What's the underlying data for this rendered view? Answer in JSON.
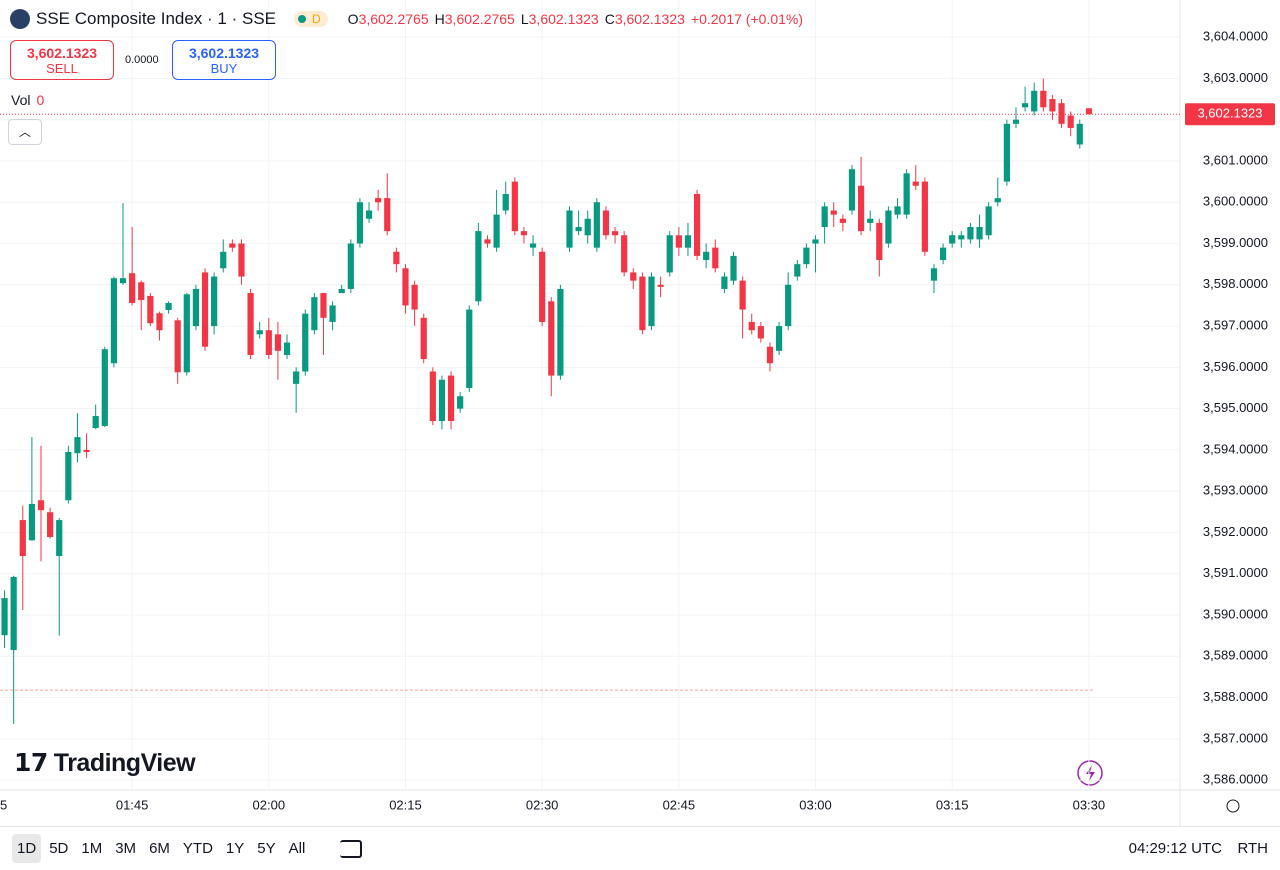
{
  "header": {
    "title": "SSE Composite Index · 1 · SSE",
    "badge": "D",
    "ohlc": [
      {
        "label": "O",
        "value": "3,602.2765"
      },
      {
        "label": "H",
        "value": "3,602.2765"
      },
      {
        "label": "L",
        "value": "3,602.1323"
      },
      {
        "label": "C",
        "value": "3,602.1323"
      }
    ],
    "change": "+0.2017 (+0.01%)"
  },
  "trade": {
    "sell_price": "3,602.1323",
    "sell_label": "SELL",
    "spread": "0.0000",
    "buy_price": "3,602.1323",
    "buy_label": "BUY"
  },
  "volume": {
    "label": "Vol",
    "value": "0"
  },
  "logo": "TradingView",
  "toolbar": {
    "ranges": [
      "1D",
      "5D",
      "1M",
      "3M",
      "6M",
      "YTD",
      "1Y",
      "5Y",
      "All"
    ],
    "time": "04:29:12 UTC",
    "session": "RTH"
  },
  "chart_data": {
    "type": "candlestick",
    "up_color": "#089981",
    "down_color": "#f23645",
    "open": [
      3589.51,
      3589.15,
      3592.3,
      3591.81,
      3592.78,
      3592.49,
      3591.43,
      3592.78,
      3593.92,
      3594.0,
      3594.53,
      3594.58,
      3596.1,
      3598.04,
      3598.28,
      3598.06,
      3597.73,
      3597.31,
      3597.39,
      3597.14,
      3595.88,
      3597.0,
      3598.3,
      3597.0,
      3598.4,
      3599.0,
      3599.0,
      3597.8,
      3596.8,
      3596.9,
      3596.8,
      3596.3,
      3595.6,
      3595.9,
      3596.9,
      3597.8,
      3597.1,
      3597.8,
      3597.9,
      3599.0,
      3599.6,
      3600.1,
      3600.1,
      3598.8,
      3598.4,
      3598.0,
      3597.2,
      3595.9,
      3594.7,
      3595.8,
      3595.0,
      3595.5,
      3597.6,
      3599.1,
      3598.9,
      3599.8,
      3600.5,
      3599.3,
      3598.9,
      3598.8,
      3597.6,
      3595.8,
      3598.9,
      3599.3,
      3599.2,
      3598.9,
      3599.8,
      3599.3,
      3599.2,
      3598.3,
      3598.2,
      3597.0,
      3598.0,
      3598.3,
      3599.2,
      3598.9,
      3600.2,
      3598.6,
      3598.9,
      3597.9,
      3598.1,
      3598.1,
      3597.1,
      3597.0,
      3596.5,
      3596.4,
      3597.0,
      3598.2,
      3598.5,
      3599.0,
      3599.4,
      3599.8,
      3599.6,
      3599.8,
      3600.4,
      3599.5,
      3599.5,
      3599.0,
      3599.7,
      3599.7,
      3600.5,
      3600.5,
      3598.1,
      3598.6,
      3599.0,
      3599.1,
      3599.1,
      3599.1,
      3599.2,
      3600.0,
      3600.5,
      3601.9,
      3602.3,
      3602.2,
      3602.7,
      3602.5,
      3602.4,
      3602.1,
      3601.4,
      3602.2765
    ],
    "close": [
      3590.41,
      3590.92,
      3591.43,
      3592.69,
      3592.54,
      3591.89,
      3592.3,
      3593.95,
      3594.31,
      3593.95,
      3594.82,
      3596.44,
      3598.16,
      3598.16,
      3597.56,
      3597.63,
      3597.07,
      3596.9,
      3597.56,
      3595.88,
      3597.77,
      3597.9,
      3596.5,
      3598.2,
      3598.8,
      3598.9,
      3598.2,
      3596.3,
      3596.9,
      3596.3,
      3596.4,
      3596.6,
      3595.9,
      3597.3,
      3597.7,
      3597.2,
      3597.5,
      3597.9,
      3599.0,
      3600.0,
      3599.8,
      3600.0,
      3599.3,
      3598.5,
      3597.5,
      3597.4,
      3596.2,
      3594.7,
      3595.7,
      3594.7,
      3595.3,
      3597.4,
      3599.3,
      3599.0,
      3599.7,
      3600.2,
      3599.3,
      3599.2,
      3599.0,
      3597.1,
      3595.8,
      3597.9,
      3599.8,
      3599.4,
      3599.6,
      3600.0,
      3599.2,
      3599.2,
      3598.3,
      3598.1,
      3596.9,
      3598.2,
      3597.95,
      3599.2,
      3598.9,
      3599.2,
      3598.7,
      3598.8,
      3598.4,
      3598.2,
      3598.7,
      3597.4,
      3596.9,
      3596.7,
      3596.1,
      3597.0,
      3598.0,
      3598.5,
      3598.9,
      3599.1,
      3599.9,
      3599.7,
      3599.5,
      3600.8,
      3599.3,
      3599.6,
      3598.6,
      3599.8,
      3599.9,
      3600.7,
      3600.4,
      3598.8,
      3598.4,
      3598.9,
      3599.2,
      3599.2,
      3599.4,
      3599.4,
      3599.9,
      3600.1,
      3601.9,
      3602.0,
      3602.4,
      3602.7,
      3602.3,
      3602.2,
      3601.9,
      3601.8,
      3601.9,
      3602.1323
    ],
    "high": [
      3590.6,
      3590.95,
      3592.65,
      3594.31,
      3594.1,
      3592.6,
      3592.35,
      3594.1,
      3594.89,
      3594.4,
      3595.1,
      3596.5,
      3598.2,
      3599.98,
      3599.4,
      3598.1,
      3597.8,
      3597.35,
      3597.6,
      3597.2,
      3597.8,
      3598.0,
      3598.4,
      3598.3,
      3599.1,
      3599.1,
      3599.1,
      3597.9,
      3597.1,
      3597.2,
      3597.1,
      3596.8,
      3596.0,
      3597.4,
      3597.8,
      3597.8,
      3597.6,
      3598.0,
      3599.1,
      3600.1,
      3600.0,
      3600.3,
      3600.7,
      3598.9,
      3598.5,
      3598.1,
      3597.3,
      3596.0,
      3595.8,
      3595.9,
      3595.4,
      3597.5,
      3599.5,
      3599.2,
      3600.3,
      3600.5,
      3600.6,
      3599.4,
      3599.2,
      3598.9,
      3597.7,
      3598.0,
      3599.9,
      3599.8,
      3599.8,
      3600.1,
      3599.9,
      3599.4,
      3599.3,
      3598.4,
      3598.3,
      3598.3,
      3598.2,
      3599.3,
      3599.4,
      3599.5,
      3600.3,
      3599.0,
      3599.1,
      3598.3,
      3598.8,
      3598.2,
      3597.3,
      3597.1,
      3596.6,
      3597.1,
      3598.3,
      3598.6,
      3599.0,
      3599.2,
      3600.0,
      3600.0,
      3599.7,
      3600.9,
      3601.1,
      3599.8,
      3599.6,
      3599.9,
      3600.1,
      3600.8,
      3600.9,
      3600.6,
      3598.5,
      3599.0,
      3599.3,
      3599.3,
      3599.5,
      3599.7,
      3600.0,
      3600.6,
      3602.0,
      3602.3,
      3602.8,
      3602.9,
      3603.0,
      3602.6,
      3602.5,
      3602.2,
      3602.0,
      3602.2765
    ],
    "low": [
      3589.2,
      3587.36,
      3590.12,
      3591.8,
      3591.3,
      3591.85,
      3589.5,
      3592.7,
      3593.7,
      3593.8,
      3594.5,
      3594.55,
      3596.0,
      3598.0,
      3597.5,
      3596.9,
      3597.0,
      3596.65,
      3597.3,
      3595.6,
      3595.8,
      3596.9,
      3596.4,
      3596.8,
      3598.3,
      3598.8,
      3598.0,
      3596.2,
      3596.7,
      3596.2,
      3595.7,
      3596.2,
      3594.9,
      3595.8,
      3596.8,
      3596.3,
      3596.9,
      3597.8,
      3597.8,
      3598.9,
      3599.5,
      3599.8,
      3599.2,
      3598.3,
      3597.3,
      3597.0,
      3596.1,
      3594.6,
      3594.5,
      3594.5,
      3594.9,
      3595.4,
      3597.5,
      3598.9,
      3598.8,
      3599.7,
      3599.2,
      3599.0,
      3598.7,
      3597.0,
      3595.3,
      3595.7,
      3598.8,
      3599.2,
      3599.0,
      3598.8,
      3599.1,
      3599.0,
      3598.2,
      3597.9,
      3596.8,
      3596.9,
      3597.7,
      3598.2,
      3598.7,
      3598.7,
      3598.6,
      3598.4,
      3598.3,
      3597.8,
      3598.0,
      3596.7,
      3596.8,
      3596.6,
      3595.9,
      3596.3,
      3596.9,
      3598.1,
      3598.4,
      3598.3,
      3599.0,
      3599.4,
      3599.3,
      3599.7,
      3599.2,
      3599.3,
      3598.2,
      3598.9,
      3599.6,
      3599.6,
      3600.3,
      3598.7,
      3597.8,
      3598.5,
      3598.9,
      3598.9,
      3599.0,
      3598.9,
      3599.1,
      3599.9,
      3600.4,
      3601.8,
      3602.2,
      3602.1,
      3602.2,
      3602.0,
      3601.8,
      3601.6,
      3601.3,
      3602.1323
    ],
    "xlim": [
      -0.5,
      129
    ],
    "xticks": [
      {
        "value": -0.5,
        "label": "5"
      },
      {
        "value": 14,
        "label": "01:45"
      },
      {
        "value": 29,
        "label": "02:00"
      },
      {
        "value": 44,
        "label": "02:15"
      },
      {
        "value": 59,
        "label": "02:30"
      },
      {
        "value": 74,
        "label": "02:45"
      },
      {
        "value": 89,
        "label": "03:00"
      },
      {
        "value": 104,
        "label": "03:15"
      },
      {
        "value": 119,
        "label": "03:30"
      }
    ],
    "ylim": [
      3585.76,
      3604.9
    ],
    "yticks": [
      {
        "value": 3586,
        "label": "3,586.0000"
      },
      {
        "value": 3587,
        "label": "3,587.0000"
      },
      {
        "value": 3588,
        "label": "3,588.0000"
      },
      {
        "value": 3589,
        "label": "3,589.0000"
      },
      {
        "value": 3590,
        "label": "3,590.0000"
      },
      {
        "value": 3591,
        "label": "3,591.0000"
      },
      {
        "value": 3592,
        "label": "3,592.0000"
      },
      {
        "value": 3593,
        "label": "3,593.0000"
      },
      {
        "value": 3594,
        "label": "3,594.0000"
      },
      {
        "value": 3595,
        "label": "3,595.0000"
      },
      {
        "value": 3596,
        "label": "3,596.0000"
      },
      {
        "value": 3597,
        "label": "3,597.0000"
      },
      {
        "value": 3598,
        "label": "3,598.0000"
      },
      {
        "value": 3599,
        "label": "3,599.0000"
      },
      {
        "value": 3600,
        "label": "3,600.0000"
      },
      {
        "value": 3601,
        "label": "3,601.0000"
      },
      {
        "value": 3602,
        "label": "3,602.0000"
      },
      {
        "value": 3603,
        "label": "3,603.0000"
      },
      {
        "value": 3604,
        "label": "3,604.0000"
      }
    ],
    "grid": true,
    "last_price": {
      "value": 3602.1323,
      "label": "3,602.1323"
    },
    "prev_close_line": 3588.18
  }
}
